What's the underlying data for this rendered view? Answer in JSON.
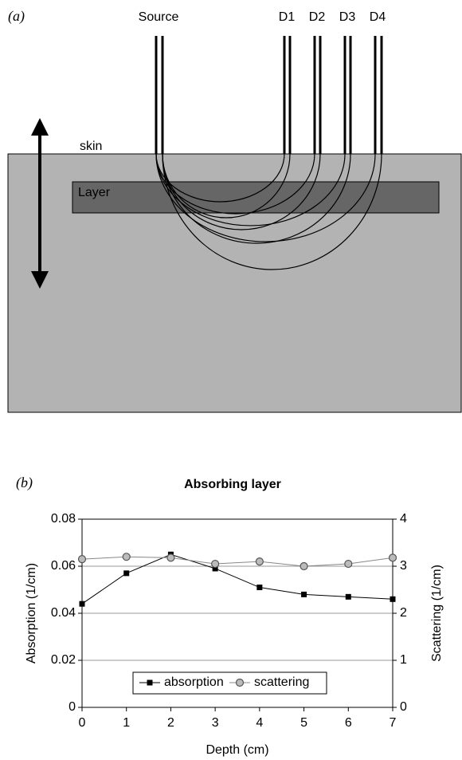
{
  "panel_a": {
    "label": "(a)",
    "source": "Source",
    "detectors": [
      "D1",
      "D2",
      "D3",
      "D4"
    ],
    "skin": "skin",
    "layer": "Layer"
  },
  "panel_b_label": "(b)",
  "chart_data": {
    "type": "line",
    "title": "Absorbing layer",
    "xlabel": "Depth (cm)",
    "ylabel": "Absorption (1/cm)",
    "y2label": "Scattering (1/cm)",
    "x": [
      0,
      1,
      2,
      3,
      4,
      5,
      6,
      7
    ],
    "series": [
      {
        "name": "absorption",
        "color": "#000000",
        "marker": "square",
        "values": [
          0.044,
          0.057,
          0.065,
          0.059,
          0.051,
          0.048,
          0.047,
          0.046
        ]
      },
      {
        "name": "scattering",
        "color": "#888888",
        "marker": "circle",
        "axis": "y2",
        "values": [
          3.15,
          3.2,
          3.18,
          3.05,
          3.1,
          3.0,
          3.05,
          3.18
        ]
      }
    ],
    "xlim": [
      0,
      7
    ],
    "xticks": [
      0,
      1,
      2,
      3,
      4,
      5,
      6,
      7
    ],
    "ylim": [
      0,
      0.08
    ],
    "yticks": [
      0,
      0.02,
      0.04,
      0.06,
      0.08
    ],
    "y2lim": [
      0,
      4
    ],
    "y2ticks": [
      0,
      1,
      2,
      3,
      4
    ],
    "grid": true,
    "legend": "lower center"
  }
}
